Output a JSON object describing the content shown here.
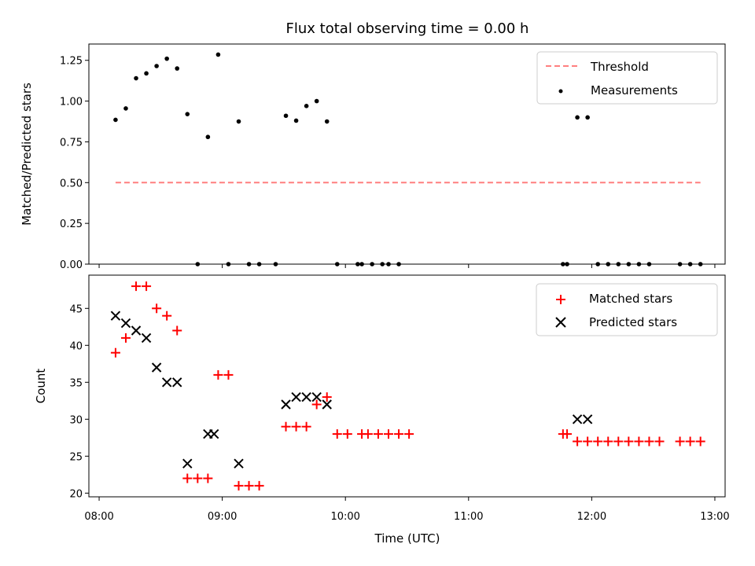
{
  "chart_data": [
    {
      "type": "scatter",
      "title": "Flux total observing time = 0.00 h",
      "ylabel": "Matched/Predicted stars",
      "xlabel": "",
      "xlim": [
        "07:55",
        "13:05"
      ],
      "ylim": [
        0,
        1.35
      ],
      "y_ticks": [
        0,
        0.25,
        0.5,
        0.75,
        1.0,
        1.25
      ],
      "y_tick_labels": [
        "0.00",
        "0.25",
        "0.50",
        "0.75",
        "1.00",
        "1.25"
      ],
      "legend_position": "upper right",
      "series": [
        {
          "name": "Threshold",
          "kind": "dashed-line",
          "color": "#ff7f7f",
          "points": [
            [
              "08:08",
              0.5
            ],
            [
              "12:53",
              0.5
            ]
          ]
        },
        {
          "name": "Measurements",
          "kind": "dot",
          "color": "#000000",
          "points": [
            [
              "08:08",
              0.885
            ],
            [
              "08:13",
              0.955
            ],
            [
              "08:18",
              1.14
            ],
            [
              "08:23",
              1.17
            ],
            [
              "08:28",
              1.215
            ],
            [
              "08:33",
              1.26
            ],
            [
              "08:38",
              1.2
            ],
            [
              "08:43",
              0.92
            ],
            [
              "08:48",
              0.0
            ],
            [
              "08:53",
              0.78
            ],
            [
              "08:58",
              1.285
            ],
            [
              "09:03",
              0.0
            ],
            [
              "09:08",
              0.875
            ],
            [
              "09:13",
              0.0
            ],
            [
              "09:18",
              0.0
            ],
            [
              "09:26",
              0.0
            ],
            [
              "09:31",
              0.91
            ],
            [
              "09:36",
              0.88
            ],
            [
              "09:41",
              0.97
            ],
            [
              "09:46",
              1.0
            ],
            [
              "09:51",
              0.875
            ],
            [
              "09:56",
              0.0
            ],
            [
              "10:06",
              0.0
            ],
            [
              "10:08",
              0.0
            ],
            [
              "10:13",
              0.0
            ],
            [
              "10:18",
              0.0
            ],
            [
              "10:21",
              0.0
            ],
            [
              "10:26",
              0.0
            ],
            [
              "11:46",
              0.0
            ],
            [
              "11:48",
              0.0
            ],
            [
              "11:53",
              0.9
            ],
            [
              "11:58",
              0.9
            ],
            [
              "12:03",
              0.0
            ],
            [
              "12:08",
              0.0
            ],
            [
              "12:13",
              0.0
            ],
            [
              "12:18",
              0.0
            ],
            [
              "12:23",
              0.0
            ],
            [
              "12:28",
              0.0
            ],
            [
              "12:43",
              0.0
            ],
            [
              "12:48",
              0.0
            ],
            [
              "12:53",
              0.0
            ]
          ]
        }
      ]
    },
    {
      "type": "scatter",
      "title": "",
      "ylabel": "Count",
      "xlabel": "Time (UTC)",
      "xlim": [
        "07:55",
        "13:05"
      ],
      "ylim": [
        19.5,
        49.5
      ],
      "y_ticks": [
        20,
        25,
        30,
        35,
        40,
        45
      ],
      "y_tick_labels": [
        "20",
        "25",
        "30",
        "35",
        "40",
        "45"
      ],
      "x_ticks": [
        "08:00",
        "09:00",
        "10:00",
        "11:00",
        "12:00",
        "13:00"
      ],
      "x_tick_labels": [
        "08:00",
        "09:00",
        "10:00",
        "11:00",
        "12:00",
        "13:00"
      ],
      "legend_position": "upper right",
      "series": [
        {
          "name": "Matched stars",
          "kind": "plus",
          "color": "#ff0000",
          "points": [
            [
              "08:08",
              39
            ],
            [
              "08:13",
              41
            ],
            [
              "08:18",
              48
            ],
            [
              "08:23",
              48
            ],
            [
              "08:28",
              45
            ],
            [
              "08:33",
              44
            ],
            [
              "08:38",
              42
            ],
            [
              "08:43",
              22
            ],
            [
              "08:48",
              22
            ],
            [
              "08:53",
              22
            ],
            [
              "08:58",
              36
            ],
            [
              "09:03",
              36
            ],
            [
              "09:08",
              21
            ],
            [
              "09:13",
              21
            ],
            [
              "09:18",
              21
            ],
            [
              "09:31",
              29
            ],
            [
              "09:36",
              29
            ],
            [
              "09:41",
              29
            ],
            [
              "09:46",
              32
            ],
            [
              "09:51",
              33
            ],
            [
              "09:56",
              28
            ],
            [
              "10:01",
              28
            ],
            [
              "10:08",
              28
            ],
            [
              "10:11",
              28
            ],
            [
              "10:16",
              28
            ],
            [
              "10:21",
              28
            ],
            [
              "10:26",
              28
            ],
            [
              "10:31",
              28
            ],
            [
              "11:46",
              28
            ],
            [
              "11:48",
              28
            ],
            [
              "11:53",
              27
            ],
            [
              "11:58",
              27
            ],
            [
              "12:03",
              27
            ],
            [
              "12:08",
              27
            ],
            [
              "12:13",
              27
            ],
            [
              "12:18",
              27
            ],
            [
              "12:23",
              27
            ],
            [
              "12:28",
              27
            ],
            [
              "12:33",
              27
            ],
            [
              "12:43",
              27
            ],
            [
              "12:48",
              27
            ],
            [
              "12:53",
              27
            ]
          ]
        },
        {
          "name": "Predicted stars",
          "kind": "x",
          "color": "#000000",
          "points": [
            [
              "08:08",
              44
            ],
            [
              "08:13",
              43
            ],
            [
              "08:18",
              42
            ],
            [
              "08:23",
              41
            ],
            [
              "08:28",
              37
            ],
            [
              "08:33",
              35
            ],
            [
              "08:38",
              35
            ],
            [
              "08:43",
              24
            ],
            [
              "08:53",
              28
            ],
            [
              "08:56",
              28
            ],
            [
              "09:08",
              24
            ],
            [
              "09:31",
              32
            ],
            [
              "09:36",
              33
            ],
            [
              "09:41",
              33
            ],
            [
              "09:46",
              33
            ],
            [
              "09:51",
              32
            ],
            [
              "11:53",
              30
            ],
            [
              "11:58",
              30
            ]
          ]
        }
      ]
    }
  ]
}
